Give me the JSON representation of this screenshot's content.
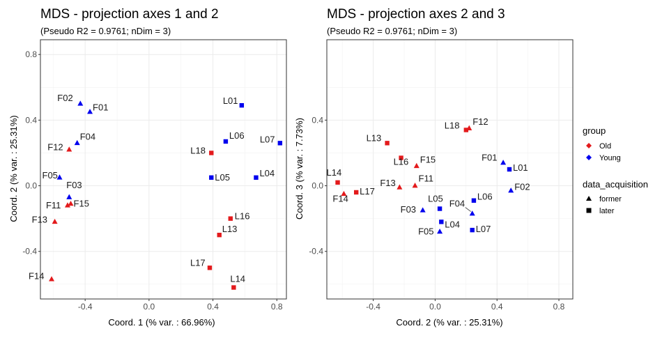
{
  "colors": {
    "Old": "#e31a1c",
    "Young": "#0000ee",
    "grid": "#ebebeb",
    "frame": "#333333"
  },
  "legend": {
    "group_title": "group",
    "group_items": [
      {
        "label": "Old",
        "color": "#e31a1c"
      },
      {
        "label": "Young",
        "color": "#0000ee"
      }
    ],
    "acq_title": "data_acquisition",
    "acq_items": [
      {
        "label": "former",
        "shape": "triangle"
      },
      {
        "label": "later",
        "shape": "square"
      }
    ]
  },
  "chart_data": [
    {
      "type": "scatter",
      "title": "MDS - projection axes 1 and 2",
      "subtitle": "(Pseudo R2 = 0.9761; nDim = 3)",
      "xlabel": "Coord. 1 (% var. : 66.96%)",
      "ylabel": "Coord. 2 (% var. : 25.31%)",
      "xlim": [
        -0.68,
        0.86
      ],
      "ylim": [
        -0.69,
        0.89
      ],
      "xticks": [
        -0.4,
        0.0,
        0.4,
        0.8
      ],
      "xtick_labels": [
        "-0.4",
        "0.0",
        "0.4",
        "0.8"
      ],
      "yticks": [
        -0.4,
        0.0,
        0.4,
        0.8
      ],
      "ytick_labels": [
        "-0.4",
        "0.0",
        "0.4",
        "0.8"
      ],
      "grid": true,
      "points": [
        {
          "label": "F02",
          "x": -0.43,
          "y": 0.5,
          "group": "Young",
          "acq": "former"
        },
        {
          "label": "F01",
          "x": -0.37,
          "y": 0.45,
          "group": "Young",
          "acq": "former"
        },
        {
          "label": "F04",
          "x": -0.45,
          "y": 0.26,
          "group": "Young",
          "acq": "former"
        },
        {
          "label": "F12",
          "x": -0.5,
          "y": 0.22,
          "group": "Old",
          "acq": "former"
        },
        {
          "label": "F05",
          "x": -0.56,
          "y": 0.05,
          "group": "Young",
          "acq": "former"
        },
        {
          "label": "F03",
          "x": -0.5,
          "y": -0.07,
          "group": "Young",
          "acq": "former"
        },
        {
          "label": "F11",
          "x": -0.51,
          "y": -0.12,
          "group": "Old",
          "acq": "former"
        },
        {
          "label": "F15",
          "x": -0.49,
          "y": -0.11,
          "group": "Old",
          "acq": "former"
        },
        {
          "label": "F13",
          "x": -0.59,
          "y": -0.22,
          "group": "Old",
          "acq": "former"
        },
        {
          "label": "F14",
          "x": -0.61,
          "y": -0.57,
          "group": "Old",
          "acq": "former"
        },
        {
          "label": "L01",
          "x": 0.58,
          "y": 0.49,
          "group": "Young",
          "acq": "later"
        },
        {
          "label": "L06",
          "x": 0.48,
          "y": 0.27,
          "group": "Young",
          "acq": "later"
        },
        {
          "label": "L07",
          "x": 0.82,
          "y": 0.26,
          "group": "Young",
          "acq": "later"
        },
        {
          "label": "L18",
          "x": 0.39,
          "y": 0.2,
          "group": "Old",
          "acq": "later"
        },
        {
          "label": "L05",
          "x": 0.39,
          "y": 0.05,
          "group": "Young",
          "acq": "later"
        },
        {
          "label": "L04",
          "x": 0.67,
          "y": 0.05,
          "group": "Young",
          "acq": "later"
        },
        {
          "label": "L16",
          "x": 0.51,
          "y": -0.2,
          "group": "Old",
          "acq": "later"
        },
        {
          "label": "L13",
          "x": 0.44,
          "y": -0.3,
          "group": "Old",
          "acq": "later"
        },
        {
          "label": "L17",
          "x": 0.38,
          "y": -0.5,
          "group": "Old",
          "acq": "later"
        },
        {
          "label": "L14",
          "x": 0.53,
          "y": -0.62,
          "group": "Old",
          "acq": "later"
        }
      ]
    },
    {
      "type": "scatter",
      "title": "MDS - projection axes 2 and 3",
      "subtitle": "(Pseudo R2 = 0.9761; nDim = 3)",
      "xlabel": "Coord. 2 (% var. : 25.31%)",
      "ylabel": "Coord. 3 (% var. : 7.73%)",
      "xlim": [
        -0.7,
        0.89
      ],
      "ylim": [
        -0.69,
        0.89
      ],
      "xticks": [
        -0.4,
        0.0,
        0.4,
        0.8
      ],
      "xtick_labels": [
        "-0.4",
        "0.0",
        "0.4",
        "0.8"
      ],
      "yticks": [
        -0.4,
        0.0,
        0.4
      ],
      "ytick_labels": [
        "-0.4",
        "0.0",
        "0.4"
      ],
      "grid": true,
      "points": [
        {
          "label": "L18",
          "x": 0.2,
          "y": 0.34,
          "group": "Old",
          "acq": "later"
        },
        {
          "label": "F12",
          "x": 0.22,
          "y": 0.35,
          "group": "Old",
          "acq": "former"
        },
        {
          "label": "L13",
          "x": -0.31,
          "y": 0.26,
          "group": "Old",
          "acq": "later"
        },
        {
          "label": "L16",
          "x": -0.22,
          "y": 0.17,
          "group": "Old",
          "acq": "later"
        },
        {
          "label": "F15",
          "x": -0.12,
          "y": 0.12,
          "group": "Old",
          "acq": "former"
        },
        {
          "label": "F01",
          "x": 0.44,
          "y": 0.14,
          "group": "Young",
          "acq": "former"
        },
        {
          "label": "L01",
          "x": 0.48,
          "y": 0.1,
          "group": "Young",
          "acq": "later"
        },
        {
          "label": "F02",
          "x": 0.49,
          "y": -0.03,
          "group": "Young",
          "acq": "former"
        },
        {
          "label": "L14",
          "x": -0.63,
          "y": 0.02,
          "group": "Old",
          "acq": "later"
        },
        {
          "label": "F14",
          "x": -0.59,
          "y": -0.05,
          "group": "Old",
          "acq": "former"
        },
        {
          "label": "L17",
          "x": -0.51,
          "y": -0.04,
          "group": "Old",
          "acq": "later"
        },
        {
          "label": "F13",
          "x": -0.23,
          "y": -0.01,
          "group": "Old",
          "acq": "former"
        },
        {
          "label": "F11",
          "x": -0.13,
          "y": 0.0,
          "group": "Old",
          "acq": "former"
        },
        {
          "label": "F03",
          "x": -0.08,
          "y": -0.15,
          "group": "Young",
          "acq": "former"
        },
        {
          "label": "L05",
          "x": 0.03,
          "y": -0.14,
          "group": "Young",
          "acq": "later"
        },
        {
          "label": "L04",
          "x": 0.04,
          "y": -0.22,
          "group": "Young",
          "acq": "later"
        },
        {
          "label": "F05",
          "x": 0.03,
          "y": -0.28,
          "group": "Young",
          "acq": "former"
        },
        {
          "label": "L06",
          "x": 0.25,
          "y": -0.09,
          "group": "Young",
          "acq": "later"
        },
        {
          "label": "F04",
          "x": 0.24,
          "y": -0.17,
          "group": "Young",
          "acq": "former"
        },
        {
          "label": "L07",
          "x": 0.24,
          "y": -0.27,
          "group": "Young",
          "acq": "later"
        }
      ]
    }
  ]
}
